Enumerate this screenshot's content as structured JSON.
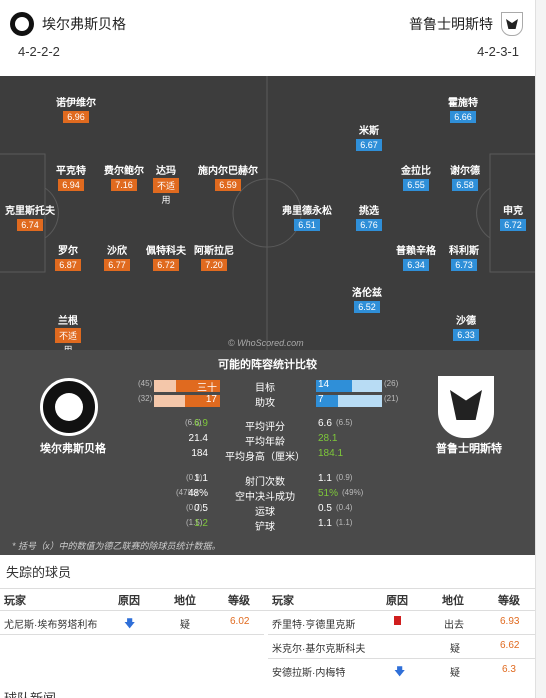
{
  "header": {
    "home_team": "埃尔弗斯贝格",
    "away_team": "普鲁士明斯特",
    "home_formation": "4-2-2-2",
    "away_formation": "4-2-3-1"
  },
  "pitch": {
    "home_players": [
      {
        "name": "诺伊维尔",
        "rating": "6.96"
      },
      {
        "name": "平克特",
        "rating": "6.94"
      },
      {
        "name": "费尔鲍尔",
        "rating": "7.16"
      },
      {
        "name": "达玛",
        "rating": "不适",
        "note": "用"
      },
      {
        "name": "施内尔巴赫尔",
        "rating": "6.59"
      },
      {
        "name": "克里斯托夫",
        "rating": "6.74"
      },
      {
        "name": "罗尔",
        "rating": "6.87"
      },
      {
        "name": "沙欣",
        "rating": "6.77"
      },
      {
        "name": "佩特科夫",
        "rating": "6.72"
      },
      {
        "name": "阿斯拉尼",
        "rating": "7.20"
      },
      {
        "name": "兰根",
        "rating": "不适",
        "note": "用"
      }
    ],
    "away_players": [
      {
        "name": "霍施特",
        "rating": "6.66"
      },
      {
        "name": "米斯",
        "rating": "6.67"
      },
      {
        "name": "金拉比",
        "rating": "6.55"
      },
      {
        "name": "谢尔德",
        "rating": "6.58"
      },
      {
        "name": "弗里德永松",
        "rating": "6.51"
      },
      {
        "name": "挑选",
        "rating": "6.76"
      },
      {
        "name": "申克",
        "rating": "6.72"
      },
      {
        "name": "普赖辛格",
        "rating": "6.34"
      },
      {
        "name": "科利斯",
        "rating": "6.73"
      },
      {
        "name": "洛伦兹",
        "rating": "6.52"
      },
      {
        "name": "沙德",
        "rating": "6.33"
      }
    ],
    "watermark": "© WhoScored.com"
  },
  "compare": {
    "title": "可能的阵容统计比较",
    "home_label": "埃尔弗斯贝格",
    "away_label": "普鲁士明斯特",
    "bar_stats": [
      {
        "label": "目标",
        "home": "三十",
        "home_league": "(45)",
        "away": "14",
        "away_league": "(26)",
        "home_frac": 0.67,
        "away_frac": 0.54
      },
      {
        "label": "助攻",
        "home": "17",
        "home_league": "(32)",
        "away": "7",
        "away_league": "(21)",
        "home_frac": 0.53,
        "away_frac": 0.33
      }
    ],
    "stats_a": [
      {
        "label": "平均评分",
        "home": "6.9",
        "home_league": "(6.6)",
        "away": "6.6",
        "away_league": "(6.5)",
        "home_green": true,
        "away_green": false
      },
      {
        "label": "平均年龄",
        "home": "21.4",
        "home_league": "",
        "away": "28.1",
        "away_league": "",
        "home_green": false,
        "away_green": true
      },
      {
        "label": "平均身高（厘米）",
        "home": "184",
        "home_league": "",
        "away": "184.1",
        "away_league": "",
        "home_green": false,
        "away_green": true
      }
    ],
    "stats_b": [
      {
        "label": "射门次数",
        "home": "1.1",
        "home_league": "(0.9)",
        "away": "1.1",
        "away_league": "(0.9)",
        "home_green": false,
        "away_green": false
      },
      {
        "label": "空中决斗成功",
        "home": "48%",
        "home_league": "(47%)",
        "away": "51%",
        "away_league": "(49%)",
        "home_green": false,
        "away_green": true
      },
      {
        "label": "运球",
        "home": "0.5",
        "home_league": "(0.7)",
        "away": "0.5",
        "away_league": "(0.4)",
        "home_green": false,
        "away_green": false
      },
      {
        "label": "铲球",
        "home": "1.2",
        "home_league": "(1.5)",
        "away": "1.1",
        "away_league": "(1.1)",
        "home_green": true,
        "away_green": false
      }
    ],
    "footnote": "* 括号（x）中的数值为德乙联赛的除球员统计数据。"
  },
  "missing": {
    "title": "失踪的球员",
    "headers": {
      "player": "玩家",
      "reason": "原因",
      "status": "地位",
      "rating": "等级"
    },
    "home": [
      {
        "player": "尤尼斯·埃布努塔利布",
        "reason": "down",
        "status": "疑",
        "rating": "6.02"
      }
    ],
    "away": [
      {
        "player": "乔里特·亨德里克斯",
        "reason": "red",
        "status": "出去",
        "rating": "6.93"
      },
      {
        "player": "米克尔·基尔克斯科夫",
        "reason": "",
        "status": "疑",
        "rating": "6.62"
      },
      {
        "player": "安德拉斯·内梅特",
        "reason": "down",
        "status": "疑",
        "rating": "6.3"
      }
    ]
  },
  "news_title": "球队新闻",
  "colors": {
    "home": "#e06a1f",
    "away": "#2f8fd8",
    "pitch": "#3d3d3d",
    "panel": "#4a4a4a",
    "good": "#7ec83a"
  },
  "icons": {
    "down": "arrow-down-icon",
    "red": "red-card-icon"
  }
}
